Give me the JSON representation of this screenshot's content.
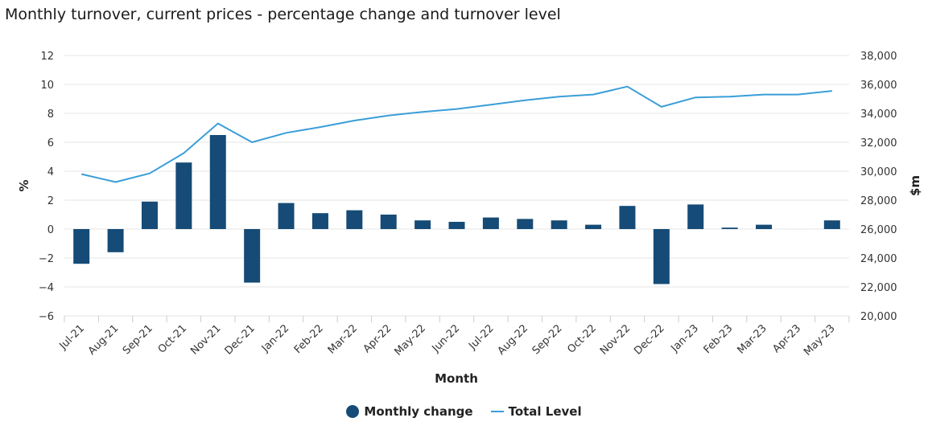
{
  "title": "Monthly turnover, current prices - percentage change and turnover level",
  "colors": {
    "bars": "#154b76",
    "line": "#3a9ed8",
    "grid": "#e6e6e6"
  },
  "chart_data": {
    "type": "bar",
    "title": "Monthly turnover, current prices - percentage change and turnover level",
    "categories": [
      "Jul-21",
      "Aug-21",
      "Sep-21",
      "Oct-21",
      "Nov-21",
      "Dec-21",
      "Jan-22",
      "Feb-22",
      "Mar-22",
      "Apr-22",
      "May-22",
      "Jun-22",
      "Jul-22",
      "Aug-22",
      "Sep-22",
      "Oct-22",
      "Nov-22",
      "Dec-22",
      "Jan-23",
      "Feb-23",
      "Mar-23",
      "Apr-23",
      "May-23"
    ],
    "xlabel": "Month",
    "ylabel": "%",
    "ylabel_right": "$m",
    "ylim": [
      -6,
      12
    ],
    "ylim_right": [
      20000,
      38000
    ],
    "yticks": [
      "−6",
      "−4",
      "−2",
      "0",
      "2",
      "4",
      "6",
      "8",
      "10",
      "12"
    ],
    "yticks_right": [
      "20,000",
      "22,000",
      "24,000",
      "26,000",
      "28,000",
      "30,000",
      "32,000",
      "34,000",
      "36,000",
      "38,000"
    ],
    "legend_position": "bottom-center",
    "grid": true,
    "series": [
      {
        "name": "Monthly change",
        "type": "bar",
        "axis": "left",
        "values": [
          -2.4,
          -1.6,
          1.9,
          4.6,
          6.5,
          -3.7,
          1.8,
          1.1,
          1.3,
          1.0,
          0.6,
          0.5,
          0.8,
          0.7,
          0.6,
          0.3,
          1.6,
          -3.8,
          1.7,
          0.1,
          0.3,
          0.0,
          0.6
        ]
      },
      {
        "name": "Total Level",
        "type": "line",
        "axis": "right",
        "values": [
          29800,
          29250,
          29850,
          31250,
          33300,
          32000,
          32650,
          33050,
          33500,
          33850,
          34100,
          34300,
          34600,
          34900,
          35150,
          35300,
          35850,
          34450,
          35100,
          35150,
          35300,
          35300,
          35550
        ]
      }
    ]
  }
}
